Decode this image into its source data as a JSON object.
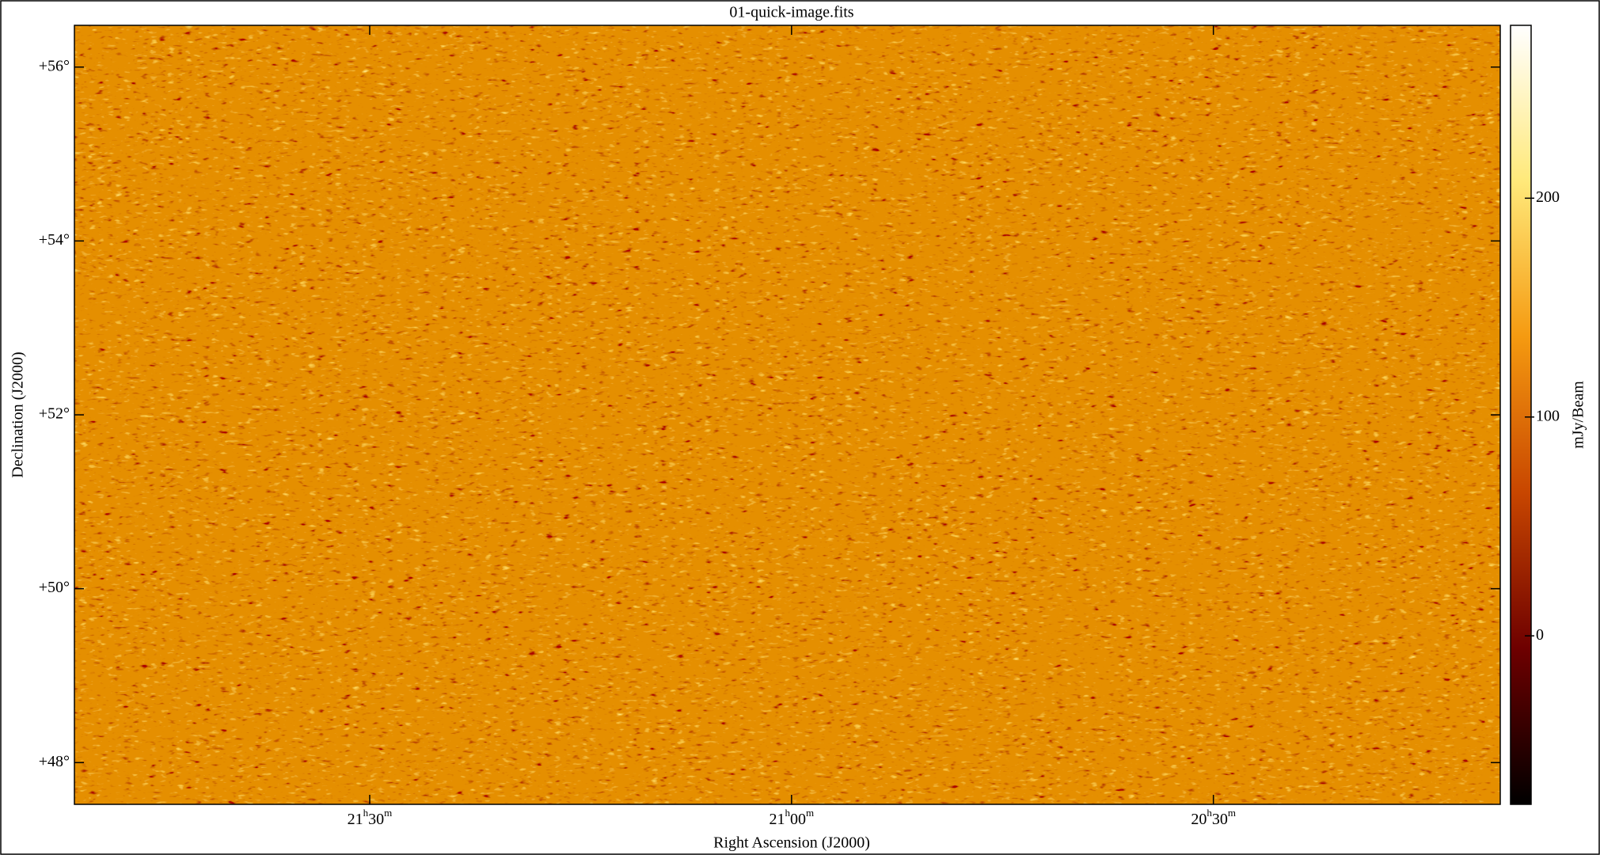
{
  "chart_data": {
    "type": "image",
    "title": "01-quick-image.fits",
    "xlabel": "Right Ascension (J2000)",
    "ylabel": "Declination (J2000)",
    "colorbar_label": "mJy/Beam",
    "xlim": [
      21.85,
      20.16
    ],
    "xticks": [
      {
        "value": 21.5,
        "label": "21h30m"
      },
      {
        "value": 21.0,
        "label": "21h00m"
      },
      {
        "value": 20.5,
        "label": "20h30m"
      }
    ],
    "ylim": [
      47.52,
      56.48
    ],
    "yticks": [
      {
        "value": 48,
        "label": "+48°"
      },
      {
        "value": 50,
        "label": "+50°"
      },
      {
        "value": 52,
        "label": "+52°"
      },
      {
        "value": 54,
        "label": "+54°"
      },
      {
        "value": 56,
        "label": "+56°"
      }
    ],
    "clim": [
      -77,
      279
    ],
    "cticks": [
      0,
      100,
      200
    ],
    "colormap": [
      "#000000",
      "#6e0000",
      "#c84600",
      "#f59a10",
      "#ffe97a",
      "#ffffff"
    ]
  }
}
